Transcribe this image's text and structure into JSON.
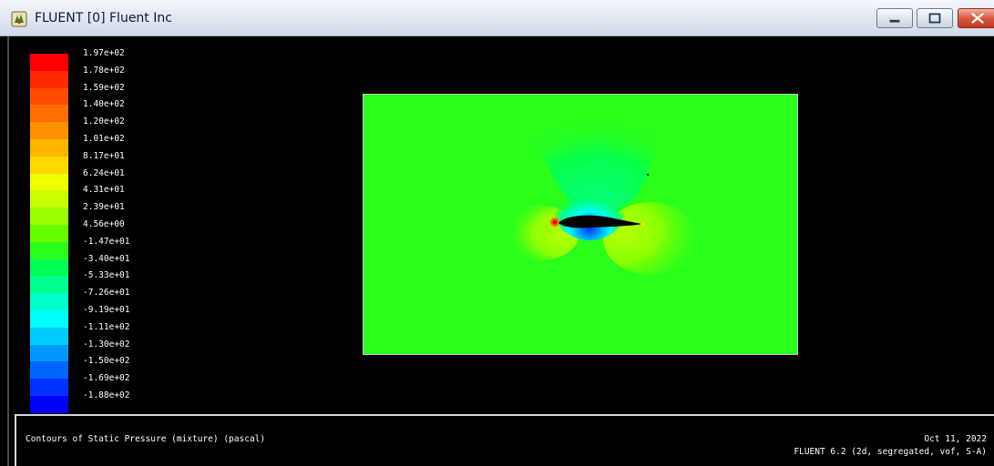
{
  "window": {
    "title": "FLUENT [0] Fluent Inc",
    "icon": "fluent-app-icon"
  },
  "controls": {
    "minimize_icon": "minimize-icon",
    "maximize_icon": "maximize-icon",
    "close_icon": "close-icon"
  },
  "legend": {
    "entries": [
      {
        "label": "1.97e+02",
        "color": "#ff0000"
      },
      {
        "label": "1.78e+02",
        "color": "#ff2a00"
      },
      {
        "label": "1.59e+02",
        "color": "#ff4c00"
      },
      {
        "label": "1.40e+02",
        "color": "#ff6e00"
      },
      {
        "label": "1.20e+02",
        "color": "#ff9100"
      },
      {
        "label": "1.01e+02",
        "color": "#ffb400"
      },
      {
        "label": "8.17e+01",
        "color": "#ffd800"
      },
      {
        "label": "6.24e+01",
        "color": "#f0ff00"
      },
      {
        "label": "4.31e+01",
        "color": "#c8ff00"
      },
      {
        "label": "2.39e+01",
        "color": "#99ff00"
      },
      {
        "label": "4.56e+00",
        "color": "#66ff00"
      },
      {
        "label": "-1.47e+01",
        "color": "#2aff1c"
      },
      {
        "label": "-3.40e+01",
        "color": "#00ff55"
      },
      {
        "label": "-5.33e+01",
        "color": "#00ff8e"
      },
      {
        "label": "-7.26e+01",
        "color": "#00ffc8"
      },
      {
        "label": "-9.19e+01",
        "color": "#00fffa"
      },
      {
        "label": "-1.11e+02",
        "color": "#00ccff"
      },
      {
        "label": "-1.30e+02",
        "color": "#0099ff"
      },
      {
        "label": "-1.50e+02",
        "color": "#0066ff"
      },
      {
        "label": "-1.69e+02",
        "color": "#0033ff"
      },
      {
        "label": "-1.88e+02",
        "color": "#0000ff"
      }
    ]
  },
  "plot": {
    "background_color": "#2aff1c",
    "airfoil_color": "#000000"
  },
  "footer": {
    "caption": "Contours of Static Pressure (mixture)  (pascal)",
    "date": "Oct 11, 2022",
    "solver": "FLUENT 6.2 (2d, segregated, vof, S-A)"
  }
}
